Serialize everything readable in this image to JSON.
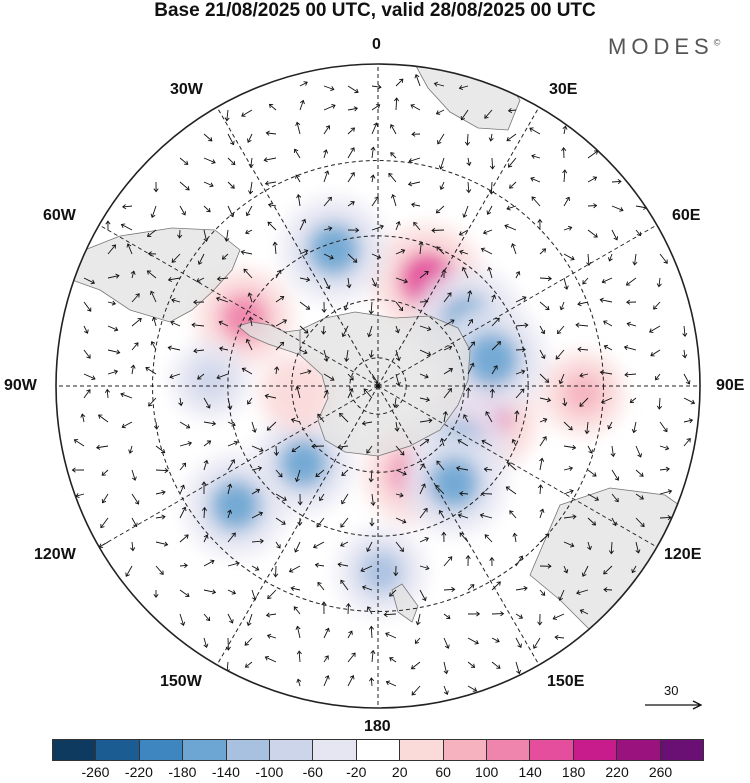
{
  "title": "Base 21/08/2025 00 UTC, valid 28/08/2025 00 UTC",
  "brand": "MODES",
  "brand_mark": "©",
  "longitude_labels": {
    "lon_0": "0",
    "lon_30e": "30E",
    "lon_60e": "60E",
    "lon_90e": "90E",
    "lon_120e": "120E",
    "lon_150e": "150E",
    "lon_180": "180",
    "lon_150w": "150W",
    "lon_120w": "120W",
    "lon_90w": "90W",
    "lon_60w": "60W",
    "lon_30w": "30W"
  },
  "wind_scale": {
    "label": "30"
  },
  "colorbar": {
    "colors": [
      "#0f3a5f",
      "#1b5c93",
      "#3d86c0",
      "#6ea6d3",
      "#a9c1e1",
      "#cdd5ea",
      "#e6e6f2",
      "#ffffff",
      "#fbdada",
      "#f6b3bf",
      "#ef85ac",
      "#e44e9c",
      "#c91c8c",
      "#99127e",
      "#6a0f73"
    ],
    "ticks": [
      "-260",
      "-220",
      "-180",
      "-140",
      "-100",
      "-60",
      "-20",
      "20",
      "60",
      "100",
      "140",
      "180",
      "220",
      "260"
    ]
  },
  "map_colors": {
    "land": "#e2e2e2",
    "coast": "#777777"
  },
  "chart_data": {
    "type": "polar-stereographic anomaly map",
    "title": "Base 21/08/2025 00 UTC, valid 28/08/2025 00 UTC",
    "legend": "colorbar bottom",
    "legend_placement": "bottom",
    "anomaly_levels": [
      -260,
      -220,
      -180,
      -140,
      -100,
      -60,
      -20,
      20,
      60,
      100,
      140,
      180,
      220,
      260
    ],
    "anomalies": [
      {
        "lon": 25,
        "lat": -50,
        "value": 180
      },
      {
        "lon": 107,
        "lat": -52,
        "value": 170
      },
      {
        "lon": 158,
        "lat": -57,
        "value": 140
      },
      {
        "lon": -63,
        "lat": -40,
        "value": 130
      },
      {
        "lon": -18,
        "lat": -42,
        "value": -160
      },
      {
        "lon": 55,
        "lat": -52,
        "value": -170
      },
      {
        "lon": 77,
        "lat": -50,
        "value": -170
      },
      {
        "lon": 127,
        "lat": -55,
        "value": -140
      },
      {
        "lon": 142,
        "lat": -48,
        "value": -150
      },
      {
        "lon": -136,
        "lat": -53,
        "value": -140
      },
      {
        "lon": -130,
        "lat": -30,
        "value": -150
      },
      {
        "lon": 179,
        "lat": -30,
        "value": -100
      },
      {
        "lon": -95,
        "lat": -62,
        "value": 60
      },
      {
        "lon": 92,
        "lat": -25,
        "value": 80
      },
      {
        "lon": -88,
        "lat": -35,
        "value": -60
      }
    ],
    "wind_vector_reference": 30,
    "center": "South Pole"
  }
}
